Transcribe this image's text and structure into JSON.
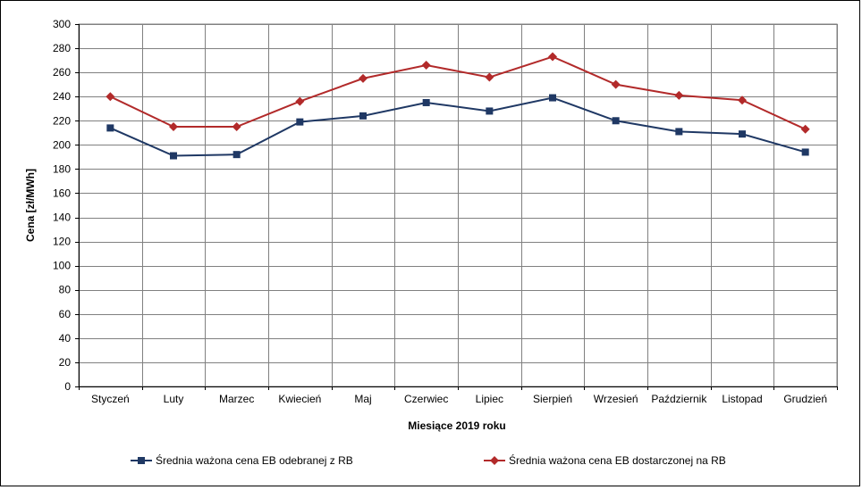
{
  "chart_data": {
    "type": "line",
    "title": "",
    "xlabel": "Miesiące 2019  roku",
    "ylabel": "Cena [zł/MWh]",
    "ylim": [
      0,
      300
    ],
    "ytick_step": 20,
    "grid": true,
    "legend_position": "bottom",
    "categories": [
      "Styczeń",
      "Luty",
      "Marzec",
      "Kwiecień",
      "Maj",
      "Czerwiec",
      "Lipiec",
      "Sierpień",
      "Wrzesień",
      "Październik",
      "Listopad",
      "Grudzień"
    ],
    "series": [
      {
        "name": "Średnia ważona cena EB odebranej z RB",
        "color": "#1f3864",
        "marker": "square",
        "values": [
          214,
          191,
          192,
          219,
          224,
          235,
          228,
          239,
          220,
          211,
          209,
          194
        ]
      },
      {
        "name": "Średnia ważona cena EB dostarczonej na RB",
        "color": "#b22a2a",
        "marker": "diamond",
        "values": [
          240,
          215,
          215,
          236,
          255,
          266,
          256,
          273,
          250,
          241,
          237,
          213
        ]
      }
    ]
  }
}
